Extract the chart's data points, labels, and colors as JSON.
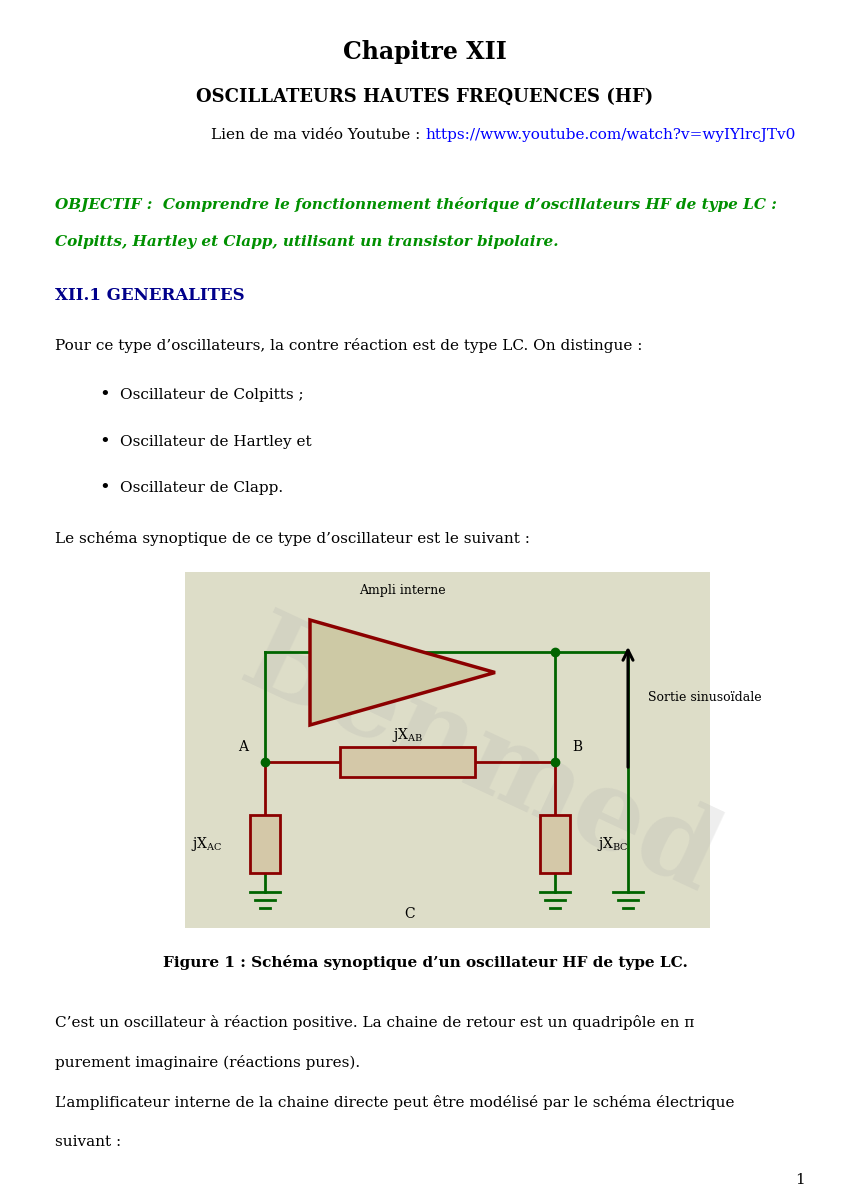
{
  "title": "Chapitre XII",
  "subtitle": "OSCILLATEURS HAUTES FREQUENCES (HF)",
  "link_prefix": "Lien de ma vidéo Youtube : ",
  "link_url": "https://www.youtube.com/watch?v=wyIYlrcJTv0",
  "obj_line1": "OBJECTIF :  Comprendre le fonctionnement théorique d’oscillateurs HF de type LC :",
  "obj_line2": "Colpitts, Hartley et Clapp, utilisant un transistor bipolaire.",
  "section_title": "XII.1 GENERALITES",
  "para1": "Pour ce type d’oscillateurs, la contre réaction est de type LC. On distingue :",
  "bullets": [
    "Oscillateur de Colpitts ;",
    "Oscillateur de Hartley et",
    "Oscillateur de Clapp."
  ],
  "para2": "Le schéma synoptique de ce type d’oscillateur est le suivant :",
  "fig_caption": "Figure 1 : Schéma synoptique d’un oscillateur HF de type LC.",
  "para3a": "C’est un oscillateur à réaction positive. La chaine de retour est un quadripôle en π",
  "para3b": "purement imaginaire (réactions pures).",
  "para4a": "L’amplificateur interne de la chaine directe peut être modélisé par le schéma électrique",
  "para4b": "suivant :",
  "page_number": "1",
  "bg_color": "#ffffff",
  "text_color": "#000000",
  "green_color": "#009000",
  "blue_color": "#00008B",
  "link_color": "#0000FF",
  "dark_green": "#006400",
  "dark_red": "#8B0000",
  "diag_bg": "#ddddc8",
  "comp_fill": "#d4c8a8"
}
